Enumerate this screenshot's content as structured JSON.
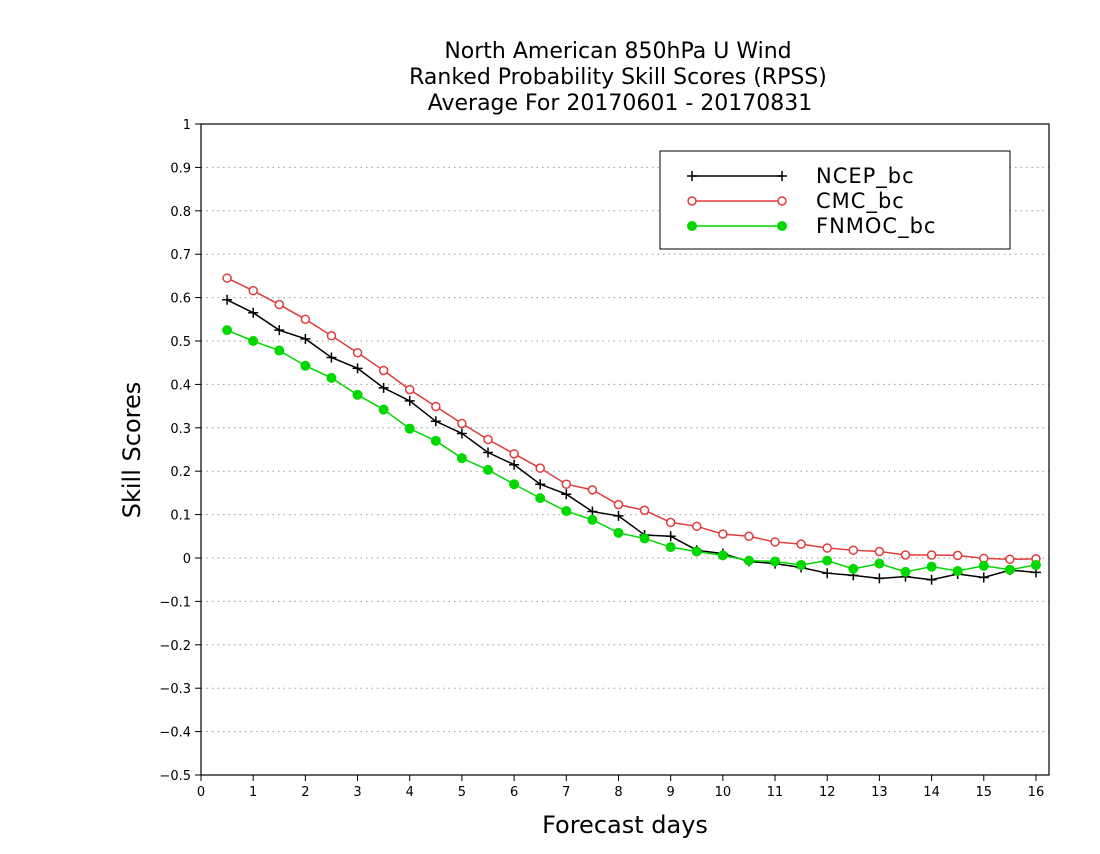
{
  "chart_data": {
    "type": "line",
    "title": [
      "North American 850hPa U Wind",
      "Ranked Probability Skill Scores (RPSS)",
      "Average For 20170601 - 20170831"
    ],
    "xlabel": "Forecast days",
    "ylabel": "Skill Scores",
    "xlim": [
      0,
      16.25
    ],
    "ylim": [
      -0.5,
      1
    ],
    "xticks": [
      0,
      1,
      2,
      3,
      4,
      5,
      6,
      7,
      8,
      9,
      10,
      11,
      12,
      13,
      14,
      15,
      16
    ],
    "xtick_labels": [
      "0",
      "1",
      "2",
      "3",
      "4",
      "5",
      "6",
      "7",
      "8",
      "9",
      "10",
      "11",
      "12",
      "13",
      "14",
      "15",
      "16"
    ],
    "yticks": [
      -0.5,
      -0.4,
      -0.3,
      -0.2,
      -0.1,
      0,
      0.1,
      0.2,
      0.3,
      0.4,
      0.5,
      0.6,
      0.7,
      0.8,
      0.9,
      1
    ],
    "ytick_labels": [
      "−0.5",
      "−0.4",
      "−0.3",
      "−0.2",
      "−0.1",
      "0",
      "0.1",
      "0.2",
      "0.3",
      "0.4",
      "0.5",
      "0.6",
      "0.7",
      "0.8",
      "0.9",
      "1"
    ],
    "grid": "horizontal dotted",
    "legend_position": "top-right",
    "x": [
      0.5,
      1.0,
      1.5,
      2.0,
      2.5,
      3.0,
      3.5,
      4.0,
      4.5,
      5.0,
      5.5,
      6.0,
      6.5,
      7.0,
      7.5,
      8.0,
      8.5,
      9.0,
      9.5,
      10.0,
      10.5,
      11.0,
      11.5,
      12.0,
      12.5,
      13.0,
      13.5,
      14.0,
      14.5,
      15.0,
      15.5,
      16.0
    ],
    "series": [
      {
        "name": "NCEP_bc",
        "color": "#000000",
        "marker": "plus",
        "values": [
          0.595,
          0.565,
          0.525,
          0.505,
          0.462,
          0.437,
          0.392,
          0.362,
          0.315,
          0.287,
          0.243,
          0.215,
          0.17,
          0.147,
          0.107,
          0.097,
          0.053,
          0.05,
          0.018,
          0.01,
          -0.008,
          -0.013,
          -0.022,
          -0.035,
          -0.04,
          -0.047,
          -0.043,
          -0.05,
          -0.037,
          -0.045,
          -0.028,
          -0.033
        ]
      },
      {
        "name": "CMC_bc",
        "color": "#e03c3c",
        "marker": "open-circle",
        "values": [
          0.645,
          0.616,
          0.584,
          0.55,
          0.512,
          0.473,
          0.432,
          0.388,
          0.349,
          0.31,
          0.273,
          0.24,
          0.207,
          0.17,
          0.157,
          0.123,
          0.11,
          0.082,
          0.073,
          0.055,
          0.05,
          0.037,
          0.032,
          0.023,
          0.018,
          0.015,
          0.007,
          0.007,
          0.006,
          -0.001,
          -0.003,
          -0.002
        ]
      },
      {
        "name": "FNMOC_bc",
        "color": "#00d800",
        "marker": "filled-circle",
        "values": [
          0.525,
          0.5,
          0.478,
          0.443,
          0.415,
          0.376,
          0.342,
          0.298,
          0.27,
          0.23,
          0.203,
          0.17,
          0.138,
          0.108,
          0.088,
          0.058,
          0.045,
          0.025,
          0.015,
          0.006,
          -0.006,
          -0.008,
          -0.016,
          -0.006,
          -0.025,
          -0.013,
          -0.032,
          -0.02,
          -0.03,
          -0.018,
          -0.027,
          -0.016
        ]
      }
    ]
  }
}
